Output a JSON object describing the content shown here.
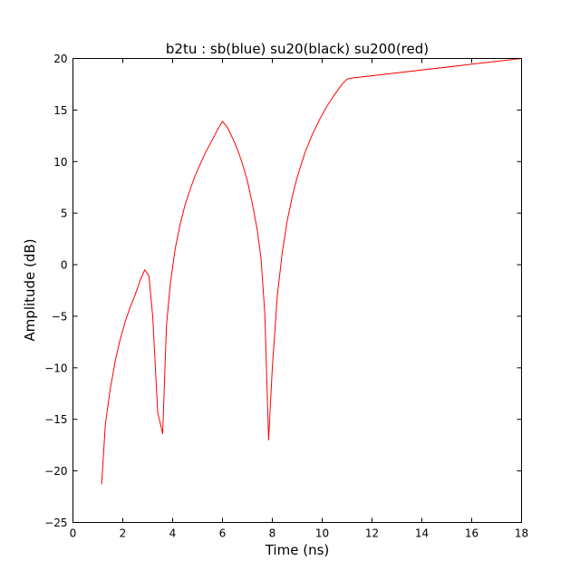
{
  "chart_data": {
    "type": "line",
    "title": "b2tu : sb(blue) su20(black) su200(red)",
    "xlabel": "Time (ns)",
    "ylabel": "Amplitude (dB)",
    "xlim": [
      0,
      18
    ],
    "ylim": [
      -25,
      20
    ],
    "x_ticks": [
      0,
      2,
      4,
      6,
      8,
      10,
      12,
      14,
      16,
      18
    ],
    "y_ticks": [
      -25,
      -20,
      -15,
      -10,
      -5,
      0,
      5,
      10,
      15,
      20
    ],
    "x_tick_labels": [
      "0",
      "2",
      "4",
      "6",
      "8",
      "10",
      "12",
      "14",
      "16",
      "18"
    ],
    "y_tick_labels": [
      "−25",
      "−20",
      "−15",
      "−10",
      "−5",
      "0",
      "5",
      "10",
      "15",
      "20"
    ],
    "grid": false,
    "legend": "none",
    "series": [
      {
        "color": "#ff0000",
        "points": [
          [
            1.15,
            -21.3
          ],
          [
            1.3,
            -15.5
          ],
          [
            1.5,
            -12.0
          ],
          [
            1.7,
            -9.3
          ],
          [
            1.9,
            -7.2
          ],
          [
            2.1,
            -5.5
          ],
          [
            2.3,
            -4.1
          ],
          [
            2.5,
            -2.9
          ],
          [
            2.7,
            -1.5
          ],
          [
            2.88,
            -0.5
          ],
          [
            3.05,
            -1.1
          ],
          [
            3.2,
            -5.0
          ],
          [
            3.4,
            -14.3
          ],
          [
            3.6,
            -16.4
          ],
          [
            3.75,
            -6.0
          ],
          [
            3.9,
            -2.0
          ],
          [
            4.1,
            1.5
          ],
          [
            4.3,
            3.9
          ],
          [
            4.5,
            5.8
          ],
          [
            4.7,
            7.3
          ],
          [
            4.9,
            8.6
          ],
          [
            5.1,
            9.7
          ],
          [
            5.3,
            10.8
          ],
          [
            5.5,
            11.7
          ],
          [
            5.7,
            12.6
          ],
          [
            5.85,
            13.3
          ],
          [
            6.0,
            13.9
          ],
          [
            6.2,
            13.3
          ],
          [
            6.4,
            12.3
          ],
          [
            6.6,
            11.2
          ],
          [
            6.8,
            9.8
          ],
          [
            7.0,
            8.1
          ],
          [
            7.2,
            5.9
          ],
          [
            7.4,
            3.3
          ],
          [
            7.55,
            0.5
          ],
          [
            7.7,
            -4.8
          ],
          [
            7.85,
            -17.0
          ],
          [
            8.0,
            -10.0
          ],
          [
            8.2,
            -3.0
          ],
          [
            8.4,
            1.2
          ],
          [
            8.6,
            4.3
          ],
          [
            8.8,
            6.6
          ],
          [
            9.0,
            8.5
          ],
          [
            9.3,
            10.8
          ],
          [
            9.6,
            12.6
          ],
          [
            9.9,
            14.1
          ],
          [
            10.2,
            15.4
          ],
          [
            10.5,
            16.5
          ],
          [
            10.8,
            17.5
          ],
          [
            11.0,
            18.0
          ],
          [
            11.2,
            18.1
          ],
          [
            18.0,
            20.0
          ]
        ]
      }
    ]
  }
}
